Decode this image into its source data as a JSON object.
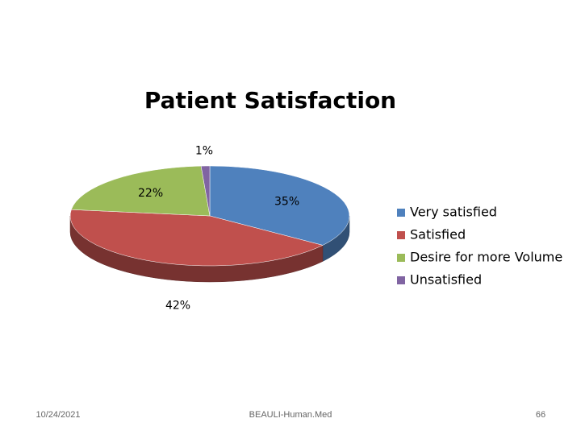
{
  "chart_data": {
    "type": "pie",
    "title": "Patient Satisfaction",
    "categories": [
      "Very satisfied",
      "Satisfied",
      "Desire for more Volume",
      "Unsatisfied"
    ],
    "values": [
      35,
      42,
      22,
      1
    ],
    "value_labels": [
      "35%",
      "42%",
      "22%",
      "1%"
    ],
    "colors": [
      "#4f81bd",
      "#c0504d",
      "#9bbb59",
      "#8064a2"
    ],
    "legend": "right"
  },
  "footer": {
    "date": "10/24/2021",
    "center": "BEAULI-Human.Med",
    "page": "66"
  }
}
